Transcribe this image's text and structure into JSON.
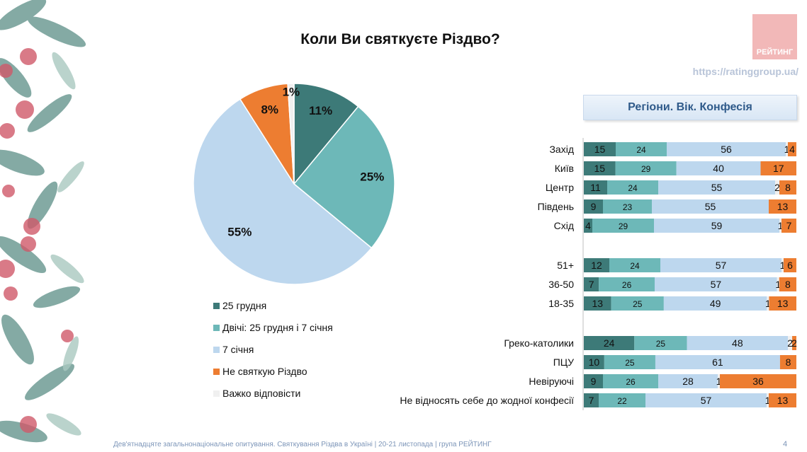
{
  "title": "Коли Ви святкуєте Різдво?",
  "logo_text": "РЕЙТИНГ",
  "url": "https://ratinggroup.ua/",
  "section_label": "Регіони. Вік. Конфесія",
  "footer": "Дев'ятнадцяте загальнонаціональне опитування. Святкування Різдва в Україні | 20-21 листопада | група РЕЙТИНГ",
  "page_number": "4",
  "colors": {
    "dec25": "#3d7a78",
    "twice": "#6db8b8",
    "jan7": "#bdd7ee",
    "none": "#ed7d31",
    "dk": "#f0f0f0"
  },
  "chart_data": [
    {
      "type": "pie",
      "title": "Коли Ви святкуєте Різдво?",
      "slices": [
        {
          "label": "25 грудня",
          "value": 11,
          "display": "11%",
          "color": "#3d7a78"
        },
        {
          "label": "Двічі: 25 грудня і 7 січня",
          "value": 25,
          "display": "25%",
          "color": "#6db8b8"
        },
        {
          "label": "7 січня",
          "value": 55,
          "display": "55%",
          "color": "#bdd7ee"
        },
        {
          "label": "Не святкую Різдво",
          "value": 8,
          "display": "8%",
          "color": "#ed7d31"
        },
        {
          "label": "Важко відповісти",
          "value": 1,
          "display": "1%",
          "color": "#f0f0f0"
        }
      ],
      "legend_position": "bottom"
    },
    {
      "type": "bar",
      "orientation": "horizontal",
      "stacked": true,
      "title": "Регіони. Вік. Конфесія",
      "series_names": [
        "25 грудня",
        "Двічі: 25 грудня і 7 січня",
        "7 січня",
        "Важко відповісти",
        "Не святкую Різдво"
      ],
      "series_colors": [
        "#3d7a78",
        "#6db8b8",
        "#bdd7ee",
        "#f0f0f0",
        "#ed7d31"
      ],
      "groups": [
        {
          "rows": [
            {
              "label": "Захід",
              "values": [
                15,
                24,
                56,
                1,
                4
              ]
            },
            {
              "label": "Київ",
              "values": [
                15,
                29,
                40,
                0,
                17
              ]
            },
            {
              "label": "Центр",
              "values": [
                11,
                24,
                55,
                2,
                8
              ]
            },
            {
              "label": "Південь",
              "values": [
                9,
                23,
                55,
                0,
                13
              ]
            },
            {
              "label": "Схід",
              "values": [
                4,
                29,
                59,
                1,
                7
              ]
            }
          ]
        },
        {
          "rows": [
            {
              "label": "51+",
              "values": [
                12,
                24,
                57,
                1,
                6
              ]
            },
            {
              "label": "36-50",
              "values": [
                7,
                26,
                57,
                1,
                8
              ]
            },
            {
              "label": "18-35",
              "values": [
                13,
                25,
                49,
                1,
                13
              ]
            }
          ]
        },
        {
          "rows": [
            {
              "label": "Греко-католики",
              "values": [
                24,
                25,
                48,
                2,
                2
              ]
            },
            {
              "label": "ПЦУ",
              "values": [
                10,
                25,
                61,
                0,
                8
              ]
            },
            {
              "label": "Невіруючі",
              "values": [
                9,
                26,
                28,
                1,
                36
              ]
            },
            {
              "label": "Не відносять себе до жодної конфесії",
              "values": [
                7,
                22,
                57,
                1,
                13
              ]
            }
          ]
        }
      ]
    }
  ]
}
